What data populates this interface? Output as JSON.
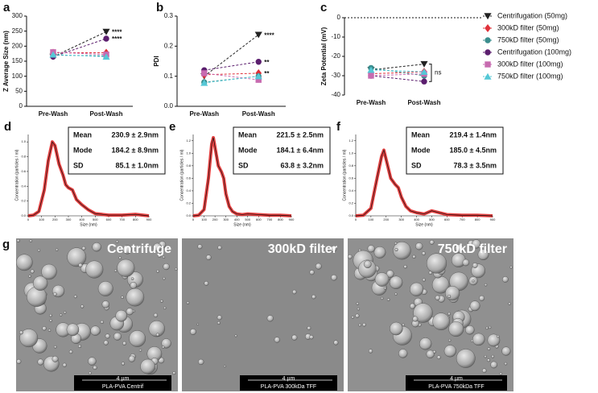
{
  "chart_data": [
    {
      "type": "line",
      "panel_label": "a",
      "ylabel": "Z Average Size (nm)",
      "categories": [
        "Pre-Wash",
        "Post-Wash"
      ],
      "ylim": [
        0,
        300
      ],
      "yticks": [
        0,
        50,
        100,
        150,
        200,
        250,
        300
      ],
      "series": [
        {
          "name": "Centrifugation (50mg)",
          "color": "#222222",
          "marker": "triangle-down",
          "values": [
            165,
            248
          ]
        },
        {
          "name": "300kD filter (50mg)",
          "color": "#e0313a",
          "marker": "diamond",
          "values": [
            178,
            178
          ]
        },
        {
          "name": "750kD filter (50mg)",
          "color": "#3a8d8d",
          "marker": "circle",
          "values": [
            170,
            168
          ]
        },
        {
          "name": "Centrifugation (100mg)",
          "color": "#5b1e6e",
          "marker": "circle",
          "values": [
            165,
            225
          ]
        },
        {
          "name": "300kD filter (100mg)",
          "color": "#c76bb0",
          "marker": "square",
          "values": [
            180,
            172
          ]
        },
        {
          "name": "750kD filter (100mg)",
          "color": "#55c8d6",
          "marker": "triangle-up",
          "values": [
            172,
            165
          ]
        }
      ],
      "annotations": [
        "****",
        "****"
      ]
    },
    {
      "type": "line",
      "panel_label": "b",
      "ylabel": "PDI",
      "categories": [
        "Pre-Wash",
        "Post-Wash"
      ],
      "ylim": [
        0,
        0.3
      ],
      "yticks": [
        {
          "value": 0,
          "label": "0.0"
        },
        0.1,
        0.2,
        0.3
      ],
      "series": [
        {
          "name": "Centrifugation (50mg)",
          "color": "#222222",
          "marker": "triangle-down",
          "values": [
            0.1,
            0.238
          ]
        },
        {
          "name": "300kD filter (50mg)",
          "color": "#e0313a",
          "marker": "diamond",
          "values": [
            0.105,
            0.11
          ]
        },
        {
          "name": "750kD filter (50mg)",
          "color": "#3a8d8d",
          "marker": "circle",
          "values": [
            0.08,
            0.1
          ]
        },
        {
          "name": "Centrifugation (100mg)",
          "color": "#5b1e6e",
          "marker": "circle",
          "values": [
            0.12,
            0.148
          ]
        },
        {
          "name": "300kD filter (100mg)",
          "color": "#c76bb0",
          "marker": "square",
          "values": [
            0.11,
            0.088
          ]
        },
        {
          "name": "750kD filter (100mg)",
          "color": "#55c8d6",
          "marker": "triangle-up",
          "values": [
            0.078,
            0.1
          ]
        }
      ],
      "annotations": [
        "****",
        "**",
        "**"
      ]
    },
    {
      "type": "line",
      "panel_label": "c",
      "ylabel": "Zeta Potential (mV)",
      "zero_line": true,
      "legend": "right",
      "categories": [
        "Pre-Wash",
        "Post-Wash"
      ],
      "ylim": [
        -40,
        0
      ],
      "yticks": [
        -40,
        -30,
        -20,
        -10,
        0
      ],
      "series": [
        {
          "name": "Centrifugation (50mg)",
          "color": "#222222",
          "marker": "triangle-down",
          "values": [
            -27,
            -24
          ]
        },
        {
          "name": "300kD filter (50mg)",
          "color": "#e0313a",
          "marker": "diamond",
          "values": [
            -29,
            -28
          ]
        },
        {
          "name": "750kD filter (50mg)",
          "color": "#3a8d8d",
          "marker": "circle",
          "values": [
            -26,
            -30
          ]
        },
        {
          "name": "Centrifugation (100mg)",
          "color": "#5b1e6e",
          "marker": "circle",
          "values": [
            -30,
            -33
          ]
        },
        {
          "name": "300kD filter (100mg)",
          "color": "#c76bb0",
          "marker": "square",
          "values": [
            -30,
            -29
          ]
        },
        {
          "name": "750kD filter (100mg)",
          "color": "#55c8d6",
          "marker": "triangle-up",
          "values": [
            -27,
            -28
          ]
        }
      ],
      "annotations": [
        "ns"
      ]
    },
    {
      "type": "nta",
      "panel_label": "d",
      "ylabel": "Concentration (particles / ml)",
      "xlabel": "Size (nm)",
      "xlim": [
        0,
        900
      ],
      "xticks": [
        0,
        100,
        200,
        300,
        400,
        500,
        600,
        700,
        800,
        900
      ],
      "ylim": [
        0,
        1.1
      ],
      "yticks": [
        {
          "value": 0,
          "label": "0.0"
        },
        0.2,
        0.4,
        0.6,
        0.8,
        {
          "value": 1,
          "label": "1.0"
        }
      ],
      "series": [
        {
          "color": "#e02020",
          "x": [
            0,
            40,
            80,
            120,
            150,
            180,
            200,
            230,
            260,
            280,
            300,
            330,
            360,
            400,
            450,
            500,
            600,
            700,
            800,
            900
          ],
          "values": [
            0,
            0.01,
            0.06,
            0.35,
            0.75,
            1.0,
            0.95,
            0.7,
            0.55,
            0.42,
            0.38,
            0.35,
            0.22,
            0.15,
            0.08,
            0.03,
            0.01,
            0.01,
            0.02,
            0
          ]
        }
      ],
      "stats": [
        {
          "label": "Mean",
          "value": "230.9 ± 2.9nm"
        },
        {
          "label": "Mode",
          "value": "184.2 ± 8.9nm"
        },
        {
          "label": "SD",
          "value": "85.1 ± 1.0nm"
        }
      ]
    },
    {
      "type": "nta",
      "panel_label": "e",
      "ylabel": "Concentration (particles / ml)",
      "xlabel": "Size (nm)",
      "xlim": [
        0,
        900
      ],
      "xticks": [
        0,
        100,
        200,
        300,
        400,
        500,
        600,
        700,
        800,
        900
      ],
      "ylim": [
        0,
        1.3
      ],
      "yticks": [
        {
          "value": 0,
          "label": "0.0"
        },
        0.2,
        0.4,
        0.6,
        0.8,
        {
          "value": 1,
          "label": "1.0"
        },
        1.2
      ],
      "series": [
        {
          "color": "#e02020",
          "x": [
            0,
            50,
            100,
            140,
            170,
            185,
            200,
            230,
            260,
            280,
            300,
            330,
            360,
            400,
            450,
            500,
            600,
            700,
            800,
            900
          ],
          "values": [
            0,
            0.01,
            0.1,
            0.6,
            1.15,
            1.25,
            1.1,
            0.8,
            0.7,
            0.6,
            0.35,
            0.15,
            0.07,
            0.03,
            0.02,
            0.03,
            0.02,
            0.01,
            0.01,
            0
          ]
        }
      ],
      "stats": [
        {
          "label": "Mean",
          "value": "221.5 ± 2.5nm"
        },
        {
          "label": "Mode",
          "value": "184.1 ± 6.4nm"
        },
        {
          "label": "SD",
          "value": "63.8 ± 3.2nm"
        }
      ]
    },
    {
      "type": "nta",
      "panel_label": "f",
      "ylabel": "Concentration (particles / ml)",
      "xlabel": "Size (nm)",
      "xlim": [
        0,
        900
      ],
      "xticks": [
        0,
        100,
        200,
        300,
        400,
        500,
        600,
        700,
        800,
        900
      ],
      "ylim": [
        0,
        1.3
      ],
      "yticks": [
        {
          "value": 0,
          "label": "0.0"
        },
        0.2,
        0.4,
        0.6,
        0.8,
        {
          "value": 1,
          "label": "1.0"
        },
        1.2
      ],
      "series": [
        {
          "color": "#e02020",
          "x": [
            0,
            50,
            100,
            140,
            170,
            185,
            200,
            230,
            260,
            280,
            300,
            330,
            360,
            400,
            450,
            500,
            600,
            700,
            800,
            900
          ],
          "values": [
            0,
            0.01,
            0.12,
            0.6,
            0.95,
            1.05,
            0.9,
            0.6,
            0.5,
            0.45,
            0.3,
            0.15,
            0.08,
            0.05,
            0.03,
            0.08,
            0.02,
            0.01,
            0.01,
            0
          ]
        }
      ],
      "stats": [
        {
          "label": "Mean",
          "value": "219.4 ± 1.4nm"
        },
        {
          "label": "Mode",
          "value": "185.0 ± 4.5nm"
        },
        {
          "label": "SD",
          "value": "78.3 ± 3.5nm"
        }
      ]
    }
  ],
  "micrographs": {
    "panel_label": "g",
    "images": [
      {
        "title": "Centrifuge",
        "scale": "4 µm",
        "caption": "PLA-PVA Centrif"
      },
      {
        "title": "300kD filter",
        "scale": "4 µm",
        "caption": "PLA-PVA 300kDa TFF"
      },
      {
        "title": "750kD filter",
        "scale": "4 µm",
        "caption": "PLA-PVA 750kDa TFF"
      }
    ]
  }
}
